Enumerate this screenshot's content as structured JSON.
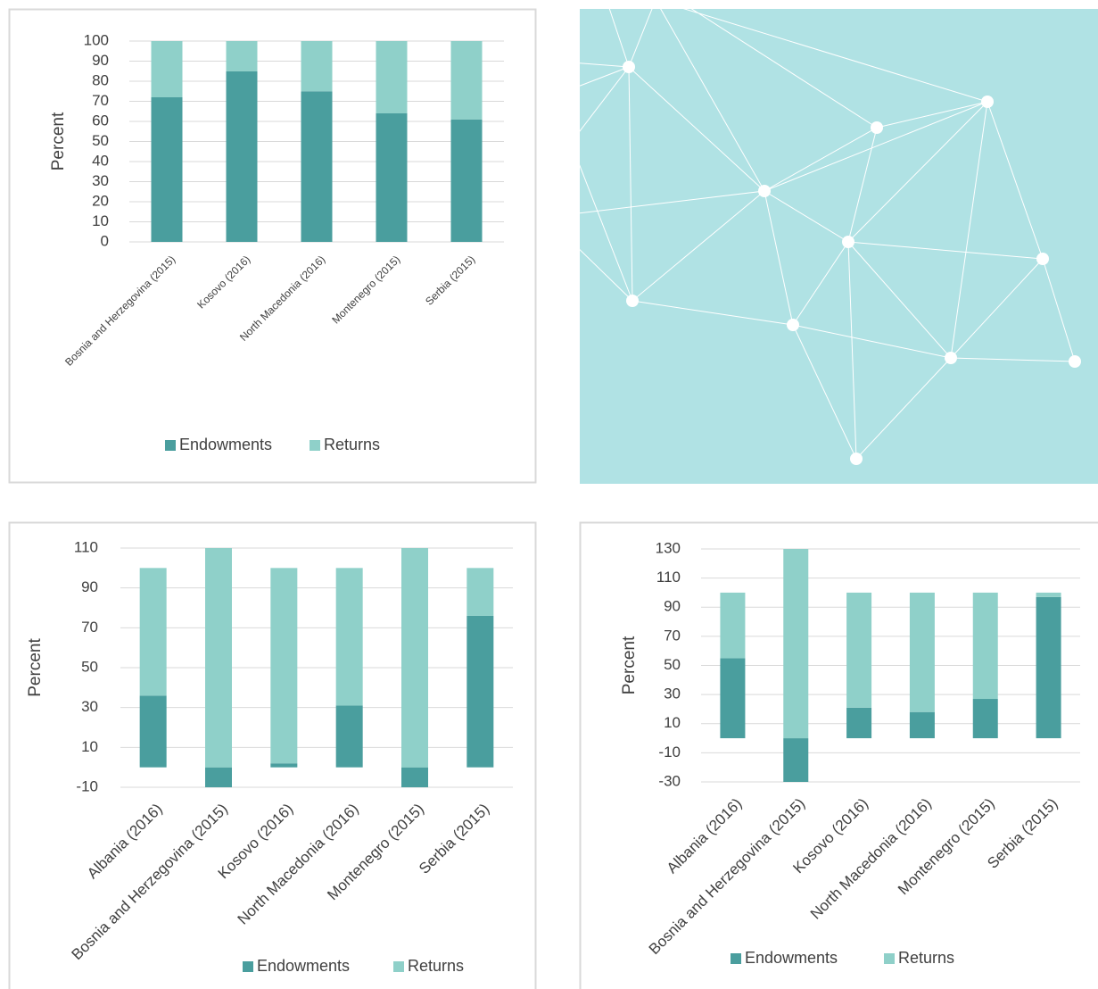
{
  "chart_data": [
    {
      "type": "bar",
      "stacked": true,
      "y_label": "Percent",
      "categories": [
        "Bosnia and Herzegovina (2015)",
        "Kosovo (2016)",
        "North Macedonia (2016)",
        "Montenegro (2015)",
        "Serbia (2015)"
      ],
      "series": [
        {
          "name": "Endowments",
          "color": "#4a9e9e",
          "values": [
            72,
            85,
            75,
            64,
            61
          ]
        },
        {
          "name": "Returns",
          "color": "#8fd0c9",
          "values": [
            28,
            15,
            25,
            36,
            39
          ]
        }
      ],
      "ylim": [
        0,
        100
      ],
      "yticks": [
        0,
        10,
        20,
        30,
        40,
        50,
        60,
        70,
        80,
        90,
        100
      ],
      "grid": true,
      "legend": "bottom"
    },
    {
      "type": "bar",
      "stacked": true,
      "y_label": "Percent",
      "categories": [
        "Albania (2016)",
        "Bosnia and Herzegovina (2015)",
        "Kosovo (2016)",
        "North Macedonia (2016)",
        "Montenegro (2015)",
        "Serbia (2015)"
      ],
      "series": [
        {
          "name": "Endowments",
          "color": "#4a9e9e",
          "values": [
            36,
            -10,
            2,
            31,
            -10,
            76
          ]
        },
        {
          "name": "Returns",
          "color": "#8fd0c9",
          "values": [
            64,
            110,
            98,
            69,
            110,
            24
          ]
        }
      ],
      "ylim": [
        -10,
        110
      ],
      "yticks": [
        -10,
        10,
        30,
        50,
        70,
        90,
        110
      ],
      "grid": true,
      "legend": "bottom"
    },
    {
      "type": "bar",
      "stacked": true,
      "y_label": "Percent",
      "categories": [
        "Albania (2016)",
        "Bosnia and Herzegovina (2015)",
        "Kosovo (2016)",
        "North Macedonia (2016)",
        "Montenegro (2015)",
        "Serbia (2015)"
      ],
      "series": [
        {
          "name": "Endowments",
          "color": "#4a9e9e",
          "values": [
            55,
            -30,
            21,
            18,
            27,
            97
          ]
        },
        {
          "name": "Returns",
          "color": "#8fd0c9",
          "values": [
            45,
            130,
            79,
            82,
            73,
            3
          ]
        }
      ],
      "ylim": [
        -30,
        130
      ],
      "yticks": [
        -30,
        -10,
        10,
        30,
        50,
        70,
        90,
        110,
        130
      ],
      "grid": true,
      "legend": "bottom"
    }
  ]
}
